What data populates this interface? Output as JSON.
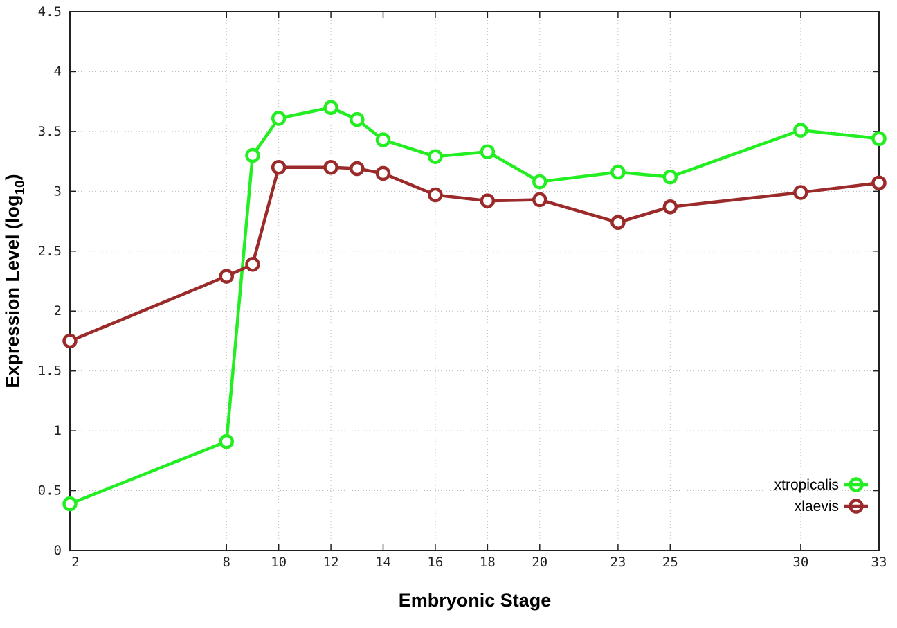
{
  "chart_data": {
    "type": "line",
    "title": "",
    "xlabel": "Embryonic Stage",
    "ylabel": "Expression Level (log",
    "ylabel_sub": "10",
    "ylabel_close": ")",
    "xlim": [
      2,
      33
    ],
    "ylim": [
      0,
      4.5
    ],
    "xticks": [
      2,
      8,
      10,
      12,
      14,
      16,
      18,
      20,
      23,
      25,
      30,
      33
    ],
    "yticks": [
      "0",
      "0.5",
      "1",
      "1.5",
      "2",
      "2.5",
      "3",
      "3.5",
      "4",
      "4.5"
    ],
    "grid": true,
    "legend_placement": "bottom-right",
    "x": [
      2,
      8,
      9,
      10,
      12,
      13,
      14,
      16,
      18,
      20,
      23,
      25,
      30,
      33
    ],
    "series": [
      {
        "name": "xtropicalis",
        "color": "#22ee22",
        "values": [
          0.39,
          0.91,
          3.3,
          3.61,
          3.7,
          3.6,
          3.43,
          3.29,
          3.33,
          3.08,
          3.16,
          3.12,
          3.51,
          3.44
        ]
      },
      {
        "name": "xlaevis",
        "color": "#9b2a2a",
        "values": [
          1.75,
          2.29,
          2.39,
          3.2,
          3.2,
          3.19,
          3.15,
          2.97,
          2.92,
          2.93,
          2.74,
          2.87,
          2.99,
          3.07
        ]
      }
    ]
  }
}
